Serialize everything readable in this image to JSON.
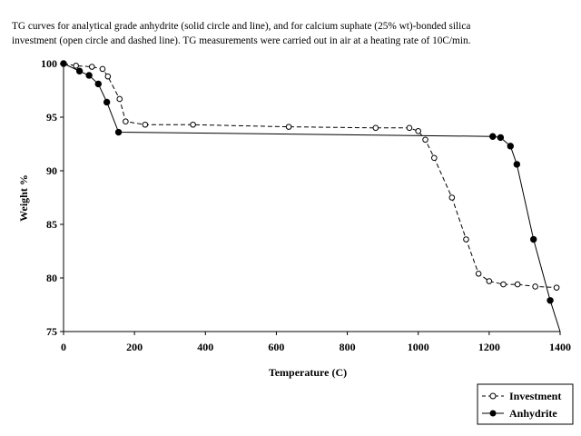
{
  "caption": {
    "line1": "TG curves for analytical grade anhydrite (solid circle and line), and for calcium suphate (25% wt)-bonded silica",
    "line2": "investment (open circle and dashed line). TG measurements were carried out in air at a heating rate of 10C/min."
  },
  "chart_data": {
    "type": "line",
    "title": "",
    "xlabel": "Temperature (C)",
    "ylabel": "Weight %",
    "xlim": [
      0,
      1400
    ],
    "ylim": [
      75,
      100
    ],
    "xticks": [
      0,
      200,
      400,
      600,
      800,
      1000,
      1200,
      1400
    ],
    "yticks": [
      75,
      80,
      85,
      90,
      95,
      100
    ],
    "grid": false,
    "legend": "bottom-right",
    "series": [
      {
        "name": "Investment",
        "style": "dashed",
        "marker": "open-circle",
        "color": "#000000",
        "x": [
          0,
          35,
          80,
          110,
          125,
          158,
          175,
          230,
          365,
          635,
          880,
          975,
          1000,
          1020,
          1045,
          1095,
          1135,
          1170,
          1200,
          1240,
          1280,
          1330,
          1390
        ],
        "y": [
          100,
          99.8,
          99.7,
          99.5,
          98.8,
          96.7,
          94.6,
          94.3,
          94.3,
          94.1,
          94.0,
          94.0,
          93.7,
          92.9,
          91.2,
          87.5,
          83.6,
          80.4,
          79.7,
          79.4,
          79.4,
          79.2,
          79.1
        ]
      },
      {
        "name": "Anhydrite",
        "style": "solid",
        "marker": "filled-circle",
        "color": "#000000",
        "x": [
          0,
          45,
          72,
          98,
          122,
          155,
          1210,
          1232,
          1260,
          1278,
          1325,
          1372,
          1400
        ],
        "y": [
          100,
          99.3,
          98.9,
          98.1,
          96.4,
          93.6,
          93.2,
          93.1,
          92.3,
          90.6,
          83.6,
          77.9,
          75.0
        ],
        "markers_drawn": [
          true,
          true,
          true,
          true,
          true,
          true,
          true,
          true,
          true,
          true,
          true,
          true,
          false
        ]
      }
    ]
  }
}
